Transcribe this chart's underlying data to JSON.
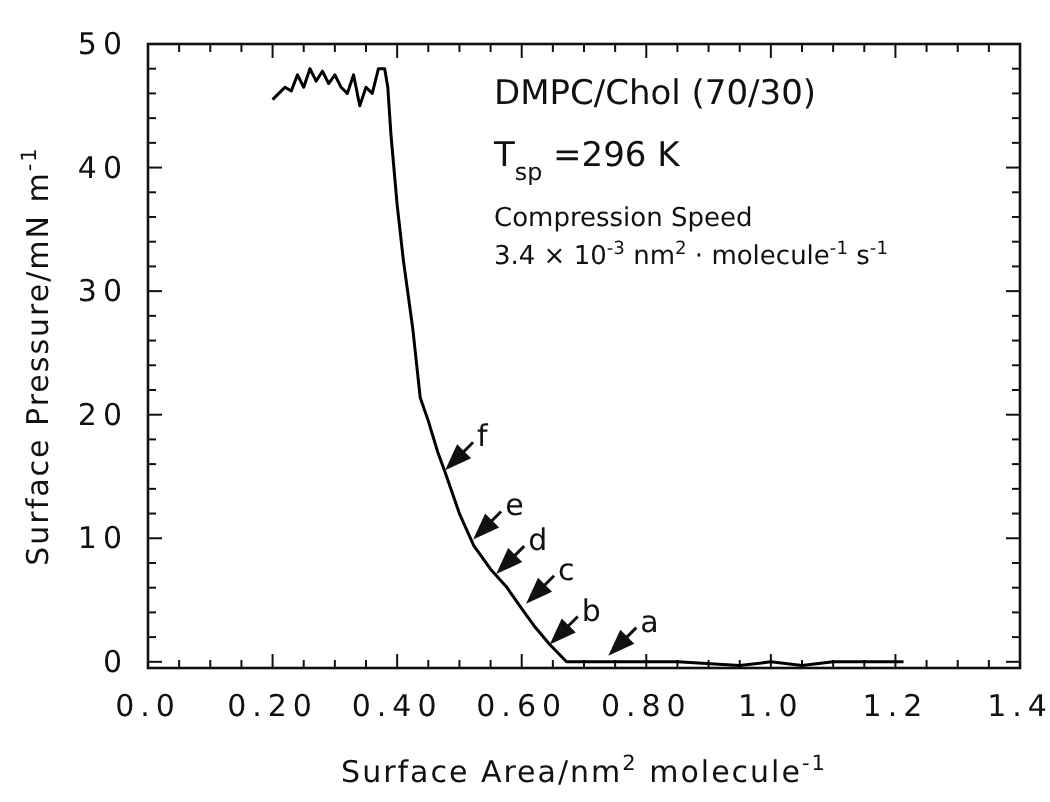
{
  "chart_data": {
    "type": "line",
    "xlabel": "Surface Area/nm$^{2}$ molecule$^{-1}$",
    "ylabel": "Surface Pressure/mN m$^{-1}$",
    "xlim": [
      0,
      1.4
    ],
    "ylim": [
      -0.5,
      50
    ],
    "xticks": [
      {
        "value": 0,
        "label": "0.0"
      },
      {
        "value": 0.05,
        "label": null
      },
      {
        "value": 0.1,
        "label": null
      },
      {
        "value": 0.15,
        "label": null
      },
      {
        "value": 0.2,
        "label": "0.20"
      },
      {
        "value": 0.25,
        "label": null
      },
      {
        "value": 0.3,
        "label": null
      },
      {
        "value": 0.35,
        "label": null
      },
      {
        "value": 0.4,
        "label": "0.40"
      },
      {
        "value": 0.45,
        "label": null
      },
      {
        "value": 0.5,
        "label": null
      },
      {
        "value": 0.55,
        "label": null
      },
      {
        "value": 0.6,
        "label": "0.60"
      },
      {
        "value": 0.65,
        "label": null
      },
      {
        "value": 0.7,
        "label": null
      },
      {
        "value": 0.75,
        "label": null
      },
      {
        "value": 0.8,
        "label": "0.80"
      },
      {
        "value": 0.85,
        "label": null
      },
      {
        "value": 0.9,
        "label": null
      },
      {
        "value": 0.95,
        "label": null
      },
      {
        "value": 1.0,
        "label": "1.0"
      },
      {
        "value": 1.05,
        "label": null
      },
      {
        "value": 1.1,
        "label": null
      },
      {
        "value": 1.15,
        "label": null
      },
      {
        "value": 1.2,
        "label": "1.2"
      },
      {
        "value": 1.25,
        "label": null
      },
      {
        "value": 1.3,
        "label": null
      },
      {
        "value": 1.35,
        "label": null
      },
      {
        "value": 1.4,
        "label": "1.4"
      }
    ],
    "yticks": [
      0,
      {
        "value": 2,
        "label": null
      },
      {
        "value": 4,
        "label": null
      },
      {
        "value": 6,
        "label": null
      },
      {
        "value": 8,
        "label": null
      },
      10,
      {
        "value": 12,
        "label": null
      },
      {
        "value": 14,
        "label": null
      },
      {
        "value": 16,
        "label": null
      },
      {
        "value": 18,
        "label": null
      },
      20,
      {
        "value": 22,
        "label": null
      },
      {
        "value": 24,
        "label": null
      },
      {
        "value": 26,
        "label": null
      },
      {
        "value": 28,
        "label": null
      },
      30,
      {
        "value": 32,
        "label": null
      },
      {
        "value": 34,
        "label": null
      },
      {
        "value": 36,
        "label": null
      },
      {
        "value": 38,
        "label": null
      },
      40,
      {
        "value": 42,
        "label": null
      },
      {
        "value": 44,
        "label": null
      },
      {
        "value": 46,
        "label": null
      },
      {
        "value": 48,
        "label": null
      },
      50
    ],
    "grid": false,
    "marker": "none",
    "line_style": "solid",
    "series": [
      {
        "color": "#000000",
        "x": [
          0.2,
          0.21,
          0.22,
          0.23,
          0.24,
          0.25,
          0.26,
          0.27,
          0.28,
          0.29,
          0.3,
          0.31,
          0.32,
          0.33,
          0.34,
          0.35,
          0.36,
          0.37,
          0.38,
          0.385,
          0.39,
          0.4,
          0.41,
          0.425,
          0.437,
          0.45,
          0.465,
          0.478,
          0.5,
          0.523,
          0.55,
          0.575,
          0.6,
          0.62,
          0.645,
          0.672,
          0.75,
          0.85,
          0.95,
          1.0,
          1.05,
          1.1,
          1.213
        ],
        "values": [
          45.5,
          46,
          46.5,
          46.2,
          47.5,
          46.5,
          48,
          47,
          47.8,
          46.8,
          47.5,
          46.5,
          46,
          47.5,
          45,
          46.5,
          46,
          48,
          48,
          46.5,
          42.7,
          37,
          32.5,
          27,
          21.4,
          19.5,
          17,
          15.2,
          12,
          9.4,
          7.5,
          6.1,
          4.3,
          2.9,
          1.4,
          0,
          0,
          0,
          -0.3,
          0,
          -0.3,
          0,
          0
        ]
      }
    ],
    "annotations": [
      "DMPC/Chol (70/30)",
      "T$_{sp}$ =296 K",
      "Compression Speed",
      "3.4 × 10$^{-3}$ nm$^{2}$ · molecule$^{-1}$ s$^{-1}$",
      {
        "text": "a",
        "x": 0.739,
        "y": 0.5
      },
      {
        "text": "b",
        "x": 0.645,
        "y": 1.4
      },
      {
        "text": "c",
        "x": 0.607,
        "y": 4.7
      },
      {
        "text": "d",
        "x": 0.559,
        "y": 7.1
      },
      {
        "text": "e",
        "x": 0.522,
        "y": 9.9
      },
      {
        "text": "f",
        "x": 0.477,
        "y": 15.5
      }
    ]
  }
}
